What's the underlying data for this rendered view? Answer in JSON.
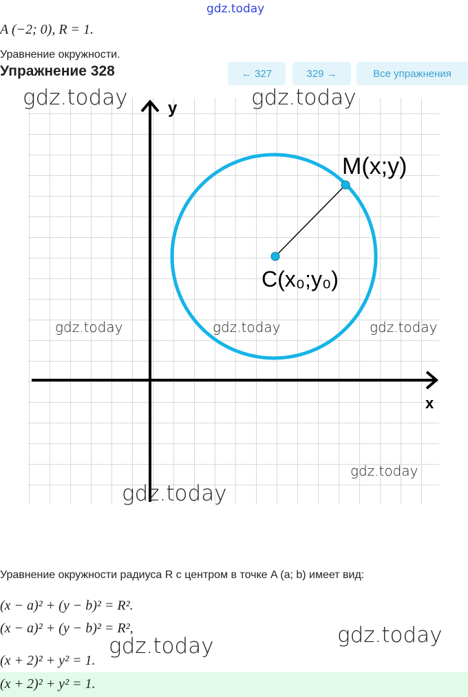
{
  "site_watermark": "gdz.today",
  "given": "A (−2; 0), R = 1.",
  "subtitle": "Уравнение окружности.",
  "exercise_title": "Упражнение 328",
  "nav": {
    "prev": "← 327",
    "next": "329 →",
    "all": "Все упражнения"
  },
  "figure": {
    "y_label": "y",
    "x_label": "x",
    "point_m": "M(x;y)",
    "point_c": "C(x₀;y₀)",
    "circle_color": "#16b4e6"
  },
  "watermark": "gdz.today",
  "explanation": "Уравнение окружности радиуса R с центром в точке A (a; b) имеет вид:",
  "formulas": [
    "(x − a)² + (y − b)² = R².",
    "(x − a)² + (y − b)² = R²,",
    "(x + 2)² + y² = 1."
  ],
  "answer": "(x + 2)² + y² = 1."
}
